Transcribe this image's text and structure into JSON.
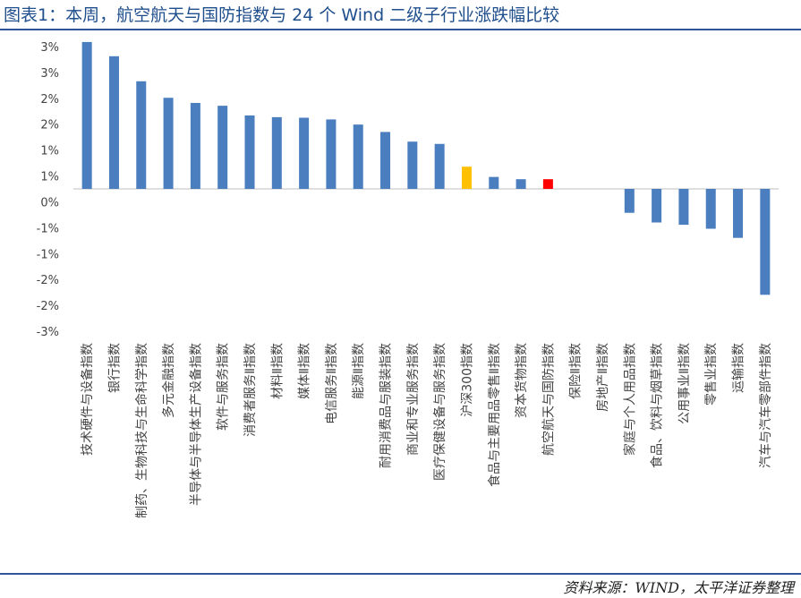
{
  "title": "图表1：本周，航空航天与国防指数与 24 个 Wind 二级子行业涨跌幅比较",
  "source": "资料来源：WIND，太平洋证券整理",
  "chart_data": {
    "type": "bar",
    "y_tick_labels": [
      "3%",
      "3%",
      "2%",
      "2%",
      "1%",
      "1%",
      "0%",
      "-1%",
      "-1%",
      "-2%",
      "-2%",
      "-3%"
    ],
    "ylim": [
      -2.5,
      2.5
    ],
    "grid": false,
    "legend": "none",
    "colors": {
      "default": "#4a7ebf",
      "hs300": "#ffc000",
      "aerospace": "#ff0000"
    },
    "categories": [
      "技术硬件与设备指数",
      "银行指数",
      "制药、生物科技与生命科学指数",
      "多元金融指数",
      "半导体与半导体生产设备指数",
      "软件与服务指数",
      "消费者服务Ⅱ指数",
      "材料Ⅱ指数",
      "媒体Ⅱ指数",
      "电信服务Ⅱ指数",
      "能源Ⅱ指数",
      "耐用消费品与服装指数",
      "商业和专业服务指数",
      "医疗保健设备与服务指数",
      "沪深300指数",
      "食品与主要用品零售Ⅱ指数",
      "资本货物指数",
      "航空航天与国防指数",
      "保险Ⅱ指数",
      "房地产Ⅱ指数",
      "家庭与个人用品指数",
      "食品、饮料与烟草指数",
      "公用事业Ⅱ指数",
      "零售业指数",
      "运输指数",
      "汽车与汽车零部件指数"
    ],
    "values": [
      2.58,
      2.33,
      1.89,
      1.6,
      1.51,
      1.46,
      1.29,
      1.26,
      1.25,
      1.22,
      1.13,
      1.0,
      0.83,
      0.79,
      0.39,
      0.21,
      0.17,
      0.17,
      0.0,
      0.0,
      -0.42,
      -0.59,
      -0.63,
      -0.7,
      -0.86,
      -1.86
    ],
    "bar_color_keys": [
      "default",
      "default",
      "default",
      "default",
      "default",
      "default",
      "default",
      "default",
      "default",
      "default",
      "default",
      "default",
      "default",
      "default",
      "hs300",
      "default",
      "default",
      "aerospace",
      "default",
      "default",
      "default",
      "default",
      "default",
      "default",
      "default",
      "default"
    ]
  }
}
